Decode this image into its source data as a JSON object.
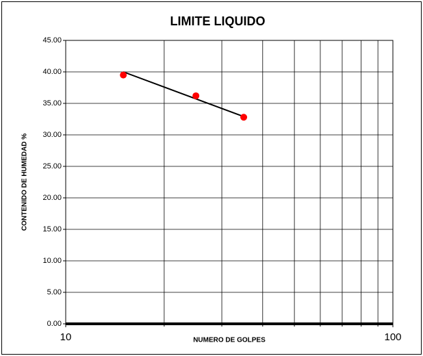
{
  "chart_data": {
    "type": "scatter",
    "title": "LIMITE LIQUIDO",
    "xlabel": "NUMERO DE GOLPES",
    "ylabel": "CONTENIDO DE HUMEDAD %",
    "xscale": "log",
    "xlim": [
      10,
      100
    ],
    "xticks": [
      10,
      100
    ],
    "xgrid_minor": [
      20,
      30,
      40,
      50,
      60,
      70,
      80,
      90
    ],
    "ylim": [
      0,
      45
    ],
    "yticks": [
      {
        "value": 0,
        "label": "0.00"
      },
      {
        "value": 5,
        "label": "5.00"
      },
      {
        "value": 10,
        "label": "10.00"
      },
      {
        "value": 15,
        "label": "15.00"
      },
      {
        "value": 20,
        "label": "20.00"
      },
      {
        "value": 25,
        "label": "25.00"
      },
      {
        "value": 30,
        "label": "30.00"
      },
      {
        "value": 35,
        "label": "35.00"
      },
      {
        "value": 40,
        "label": "40.00"
      },
      {
        "value": 45,
        "label": "45.00"
      }
    ],
    "grid": true,
    "series": [
      {
        "type": "scatter",
        "color": "#ff0000",
        "x": [
          15,
          25,
          35
        ],
        "values": [
          39.5,
          36.2,
          32.8
        ]
      },
      {
        "type": "line",
        "color": "#000000",
        "x": [
          15,
          35
        ],
        "values": [
          40.0,
          32.9
        ]
      }
    ]
  }
}
